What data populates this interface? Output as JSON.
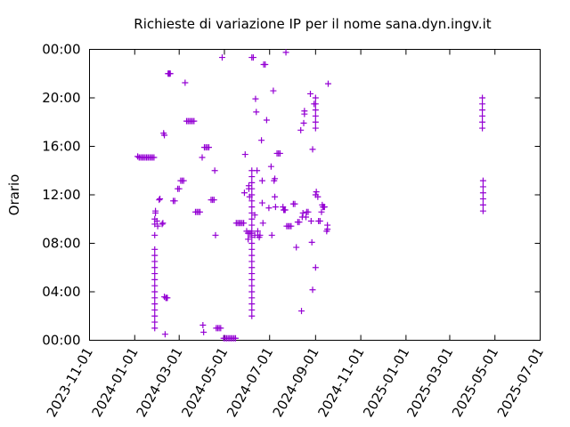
{
  "chart_data": {
    "type": "scatter",
    "title": "Richieste di variazione IP per il nome sana.dyn.ingv.it",
    "xlabel": "",
    "ylabel": "Orario",
    "x_axis": "date",
    "xlim": [
      "2023-11-01",
      "2025-07-01"
    ],
    "xticks": [
      "2023-11-01",
      "2024-01-01",
      "2024-03-01",
      "2024-05-01",
      "2024-07-01",
      "2024-09-01",
      "2024-11-01",
      "2025-01-01",
      "2025-03-01",
      "2025-05-01",
      "2025-07-01"
    ],
    "ylim": [
      "00:00",
      "24:00"
    ],
    "yticks": [
      "00:00",
      "04:00",
      "08:00",
      "12:00",
      "16:00",
      "20:00",
      "00:00"
    ],
    "marker": "plus",
    "color": "#9400d3",
    "points": [
      [
        "2024-01-05",
        "15:10"
      ],
      [
        "2024-01-07",
        "15:05"
      ],
      [
        "2024-01-09",
        "15:05"
      ],
      [
        "2024-01-11",
        "15:05"
      ],
      [
        "2024-01-13",
        "15:05"
      ],
      [
        "2024-01-15",
        "15:05"
      ],
      [
        "2024-01-17",
        "15:05"
      ],
      [
        "2024-01-19",
        "15:05"
      ],
      [
        "2024-01-21",
        "15:05"
      ],
      [
        "2024-01-23",
        "15:05"
      ],
      [
        "2024-01-25",
        "15:05"
      ],
      [
        "2024-01-27",
        "15:05"
      ],
      [
        "2024-01-28",
        "10:00"
      ],
      [
        "2024-01-28",
        "09:35"
      ],
      [
        "2024-01-28",
        "08:40"
      ],
      [
        "2024-01-29",
        "10:40"
      ],
      [
        "2024-01-29",
        "10:30"
      ],
      [
        "2024-01-31",
        "09:50"
      ],
      [
        "2024-02-01",
        "09:25"
      ],
      [
        "2024-02-03",
        "11:35"
      ],
      [
        "2024-02-04",
        "11:40"
      ],
      [
        "2024-02-07",
        "09:35"
      ],
      [
        "2024-02-08",
        "09:40"
      ],
      [
        "2024-02-09",
        "17:05"
      ],
      [
        "2024-02-10",
        "16:55"
      ],
      [
        "2024-02-10",
        "03:35"
      ],
      [
        "2024-02-11",
        "00:30"
      ],
      [
        "2024-02-12",
        "03:30"
      ],
      [
        "2024-02-13",
        "03:30"
      ],
      [
        "2024-02-14",
        "03:30"
      ],
      [
        "2024-02-15",
        "22:00"
      ],
      [
        "2024-02-16",
        "22:00"
      ],
      [
        "2024-02-17",
        "22:00"
      ],
      [
        "2024-02-18",
        "22:00"
      ],
      [
        "2024-02-22",
        "11:30"
      ],
      [
        "2024-02-24",
        "11:30"
      ],
      [
        "2024-02-28",
        "12:30"
      ],
      [
        "2024-03-01",
        "12:30"
      ],
      [
        "2024-03-03",
        "13:10"
      ],
      [
        "2024-03-05",
        "13:10"
      ],
      [
        "2024-03-07",
        "13:10"
      ],
      [
        "2024-03-09",
        "21:15"
      ],
      [
        "2024-03-11",
        "18:05"
      ],
      [
        "2024-03-13",
        "18:05"
      ],
      [
        "2024-03-15",
        "18:05"
      ],
      [
        "2024-03-17",
        "18:05"
      ],
      [
        "2024-03-19",
        "18:05"
      ],
      [
        "2024-03-21",
        "18:05"
      ],
      [
        "2024-03-23",
        "10:35"
      ],
      [
        "2024-03-25",
        "10:35"
      ],
      [
        "2024-03-27",
        "10:35"
      ],
      [
        "2024-03-29",
        "10:35"
      ],
      [
        "2024-04-01",
        "15:05"
      ],
      [
        "2024-04-02",
        "01:15"
      ],
      [
        "2024-04-03",
        "00:40"
      ],
      [
        "2024-04-04",
        "15:55"
      ],
      [
        "2024-04-06",
        "15:55"
      ],
      [
        "2024-04-08",
        "15:55"
      ],
      [
        "2024-04-10",
        "15:55"
      ],
      [
        "2024-04-13",
        "11:35"
      ],
      [
        "2024-04-15",
        "11:35"
      ],
      [
        "2024-04-17",
        "11:35"
      ],
      [
        "2024-04-18",
        "14:00"
      ],
      [
        "2024-04-19",
        "08:40"
      ],
      [
        "2024-04-20",
        "01:00"
      ],
      [
        "2024-04-22",
        "01:00"
      ],
      [
        "2024-04-24",
        "01:00"
      ],
      [
        "2024-04-26",
        "01:00"
      ],
      [
        "2024-04-28",
        "23:20"
      ],
      [
        "2024-04-30",
        "00:10"
      ],
      [
        "2024-05-02",
        "00:10"
      ],
      [
        "2024-05-04",
        "00:10"
      ],
      [
        "2024-05-06",
        "00:10"
      ],
      [
        "2024-05-08",
        "00:10"
      ],
      [
        "2024-05-10",
        "00:10"
      ],
      [
        "2024-05-12",
        "00:10"
      ],
      [
        "2024-05-14",
        "00:10"
      ],
      [
        "2024-05-16",
        "00:10"
      ],
      [
        "2024-05-17",
        "09:40"
      ],
      [
        "2024-05-19",
        "09:40"
      ],
      [
        "2024-05-21",
        "09:40"
      ],
      [
        "2024-05-23",
        "09:40"
      ],
      [
        "2024-05-25",
        "09:40"
      ],
      [
        "2024-05-27",
        "09:40"
      ],
      [
        "2024-05-28",
        "12:10"
      ],
      [
        "2024-05-29",
        "15:20"
      ],
      [
        "2024-05-31",
        "09:00"
      ],
      [
        "2024-06-02",
        "08:20"
      ],
      [
        "2024-06-02",
        "08:50"
      ],
      [
        "2024-06-03",
        "12:45"
      ],
      [
        "2024-06-03",
        "12:30"
      ],
      [
        "2024-06-04",
        "11:50"
      ],
      [
        "2024-06-04",
        "08:50"
      ],
      [
        "2024-06-06",
        "08:50"
      ],
      [
        "2024-06-07",
        "23:20"
      ],
      [
        "2024-06-09",
        "23:20"
      ],
      [
        "2024-06-11",
        "10:20"
      ],
      [
        "2024-06-11",
        "08:40"
      ],
      [
        "2024-06-12",
        "19:55"
      ],
      [
        "2024-06-13",
        "18:50"
      ],
      [
        "2024-06-14",
        "14:00"
      ],
      [
        "2024-06-15",
        "08:40"
      ],
      [
        "2024-06-15",
        "09:00"
      ],
      [
        "2024-06-17",
        "08:30"
      ],
      [
        "2024-06-18",
        "08:40"
      ],
      [
        "2024-06-20",
        "16:30"
      ],
      [
        "2024-06-21",
        "13:10"
      ],
      [
        "2024-06-21",
        "11:20"
      ],
      [
        "2024-06-22",
        "09:40"
      ],
      [
        "2024-06-23",
        "22:45"
      ],
      [
        "2024-06-25",
        "22:45"
      ],
      [
        "2024-06-27",
        "18:10"
      ],
      [
        "2024-06-30",
        "10:55"
      ],
      [
        "2024-07-03",
        "14:20"
      ],
      [
        "2024-07-04",
        "08:40"
      ],
      [
        "2024-07-06",
        "20:35"
      ],
      [
        "2024-07-07",
        "13:10"
      ],
      [
        "2024-07-08",
        "13:20"
      ],
      [
        "2024-07-08",
        "11:50"
      ],
      [
        "2024-07-09",
        "11:00"
      ],
      [
        "2024-07-11",
        "15:25"
      ],
      [
        "2024-07-13",
        "15:25"
      ],
      [
        "2024-07-15",
        "15:25"
      ],
      [
        "2024-07-19",
        "11:00"
      ],
      [
        "2024-07-20",
        "10:45"
      ],
      [
        "2024-07-21",
        "10:45"
      ],
      [
        "2024-07-22",
        "10:45"
      ],
      [
        "2024-07-23",
        "23:45"
      ],
      [
        "2024-07-24",
        "09:25"
      ],
      [
        "2024-07-26",
        "09:25"
      ],
      [
        "2024-07-28",
        "09:25"
      ],
      [
        "2024-07-30",
        "09:25"
      ],
      [
        "2024-08-02",
        "11:15"
      ],
      [
        "2024-08-04",
        "11:15"
      ],
      [
        "2024-08-06",
        "07:40"
      ],
      [
        "2024-08-08",
        "09:45"
      ],
      [
        "2024-08-10",
        "09:45"
      ],
      [
        "2024-08-12",
        "17:20"
      ],
      [
        "2024-08-13",
        "02:25"
      ],
      [
        "2024-08-14",
        "10:10"
      ],
      [
        "2024-08-15",
        "10:30"
      ],
      [
        "2024-08-16",
        "17:55"
      ],
      [
        "2024-08-17",
        "18:40"
      ],
      [
        "2024-08-17",
        "18:55"
      ],
      [
        "2024-08-19",
        "10:10"
      ],
      [
        "2024-08-20",
        "10:35"
      ],
      [
        "2024-08-22",
        "10:35"
      ],
      [
        "2024-08-25",
        "20:20"
      ],
      [
        "2024-08-26",
        "09:50"
      ],
      [
        "2024-08-27",
        "08:05"
      ],
      [
        "2024-08-28",
        "15:45"
      ],
      [
        "2024-08-28",
        "04:10"
      ],
      [
        "2024-08-30",
        "19:30"
      ],
      [
        "2024-09-01",
        "06:00"
      ],
      [
        "2024-09-01",
        "12:00"
      ],
      [
        "2024-09-02",
        "12:15"
      ],
      [
        "2024-09-04",
        "11:50"
      ],
      [
        "2024-09-05",
        "09:50"
      ],
      [
        "2024-09-07",
        "09:50"
      ],
      [
        "2024-09-09",
        "10:35"
      ],
      [
        "2024-09-10",
        "11:10"
      ],
      [
        "2024-09-11",
        "11:00"
      ],
      [
        "2024-09-12",
        "11:00"
      ],
      [
        "2024-09-13",
        "11:00"
      ],
      [
        "2024-09-16",
        "09:00"
      ],
      [
        "2024-09-17",
        "09:30"
      ],
      [
        "2024-09-17",
        "09:10"
      ],
      [
        "2024-09-18",
        "21:10"
      ]
    ],
    "vertical_runs": [
      {
        "x": "2024-01-28",
        "from": "01:00",
        "to": "07:30"
      },
      {
        "x": "2024-06-07",
        "from": "02:00",
        "to": "14:00"
      },
      {
        "x": "2024-09-01",
        "from": "17:30",
        "to": "20:00"
      },
      {
        "x": "2025-04-14",
        "from": "17:30",
        "to": "20:00"
      },
      {
        "x": "2025-04-15",
        "from": "10:40",
        "to": "13:30"
      }
    ]
  }
}
